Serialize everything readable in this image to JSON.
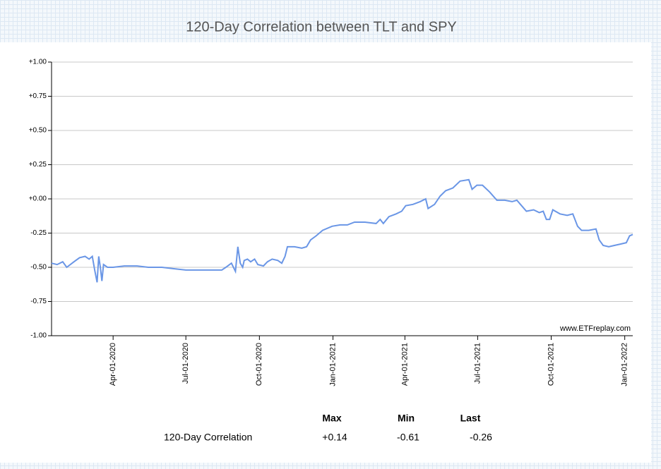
{
  "chart_data": {
    "type": "line",
    "title": "120-Day Correlation between TLT and SPY",
    "annotation": "www.ETFreplay.com",
    "color": "#6a96e6",
    "grid": true,
    "x": [
      "2020-01-15",
      "2020-01-22",
      "2020-01-29",
      "2020-02-03",
      "2020-02-12",
      "2020-02-19",
      "2020-02-26",
      "2020-03-02",
      "2020-03-06",
      "2020-03-09",
      "2020-03-12",
      "2020-03-14",
      "2020-03-16",
      "2020-03-18",
      "2020-03-20",
      "2020-03-25",
      "2020-04-01",
      "2020-04-15",
      "2020-05-01",
      "2020-05-15",
      "2020-06-01",
      "2020-06-15",
      "2020-07-01",
      "2020-07-15",
      "2020-08-01",
      "2020-08-15",
      "2020-08-20",
      "2020-08-27",
      "2020-09-01",
      "2020-09-04",
      "2020-09-07",
      "2020-09-10",
      "2020-09-12",
      "2020-09-16",
      "2020-09-20",
      "2020-09-25",
      "2020-09-29",
      "2020-10-06",
      "2020-10-11",
      "2020-10-17",
      "2020-10-24",
      "2020-10-29",
      "2020-11-02",
      "2020-11-05",
      "2020-11-14",
      "2020-11-23",
      "2020-11-29",
      "2020-12-04",
      "2020-12-11",
      "2020-12-19",
      "2020-12-31",
      "2021-01-10",
      "2021-01-19",
      "2021-01-28",
      "2021-02-10",
      "2021-02-24",
      "2021-03-01",
      "2021-03-05",
      "2021-03-12",
      "2021-03-21",
      "2021-03-28",
      "2021-04-02",
      "2021-04-11",
      "2021-04-20",
      "2021-04-27",
      "2021-04-30",
      "2021-05-08",
      "2021-05-15",
      "2021-05-22",
      "2021-05-31",
      "2021-06-09",
      "2021-06-20",
      "2021-06-24",
      "2021-06-30",
      "2021-07-07",
      "2021-07-16",
      "2021-07-25",
      "2021-08-04",
      "2021-08-13",
      "2021-08-19",
      "2021-08-25",
      "2021-08-31",
      "2021-09-09",
      "2021-09-16",
      "2021-09-21",
      "2021-09-25",
      "2021-09-29",
      "2021-10-03",
      "2021-10-12",
      "2021-10-21",
      "2021-10-28",
      "2021-11-03",
      "2021-11-08",
      "2021-11-17",
      "2021-11-26",
      "2021-11-30",
      "2021-12-05",
      "2021-12-12",
      "2021-12-19",
      "2021-12-27",
      "2022-01-03",
      "2022-01-07",
      "2022-01-11"
    ],
    "values": [
      -0.47,
      -0.48,
      -0.46,
      -0.5,
      -0.46,
      -0.43,
      -0.42,
      -0.44,
      -0.42,
      -0.52,
      -0.61,
      -0.42,
      -0.5,
      -0.6,
      -0.48,
      -0.5,
      -0.5,
      -0.49,
      -0.49,
      -0.5,
      -0.5,
      -0.51,
      -0.52,
      -0.52,
      -0.52,
      -0.52,
      -0.5,
      -0.47,
      -0.53,
      -0.35,
      -0.47,
      -0.5,
      -0.45,
      -0.44,
      -0.46,
      -0.44,
      -0.48,
      -0.49,
      -0.46,
      -0.44,
      -0.45,
      -0.47,
      -0.42,
      -0.35,
      -0.35,
      -0.36,
      -0.35,
      -0.3,
      -0.27,
      -0.23,
      -0.2,
      -0.19,
      -0.19,
      -0.17,
      -0.17,
      -0.18,
      -0.15,
      -0.18,
      -0.13,
      -0.11,
      -0.09,
      -0.05,
      -0.04,
      -0.02,
      0.0,
      -0.07,
      -0.04,
      0.02,
      0.06,
      0.08,
      0.13,
      0.14,
      0.07,
      0.1,
      0.1,
      0.05,
      -0.01,
      -0.01,
      -0.02,
      -0.01,
      -0.05,
      -0.09,
      -0.08,
      -0.1,
      -0.09,
      -0.15,
      -0.15,
      -0.08,
      -0.11,
      -0.12,
      -0.11,
      -0.2,
      -0.23,
      -0.23,
      -0.22,
      -0.3,
      -0.34,
      -0.35,
      -0.34,
      -0.33,
      -0.32,
      -0.27,
      -0.26
    ],
    "xlim": [
      "2020-01-15",
      "2022-01-11"
    ],
    "xticks": [
      {
        "value": "2020-04-01",
        "label": "Apr-01-2020"
      },
      {
        "value": "2020-07-01",
        "label": "Jul-01-2020"
      },
      {
        "value": "2020-10-01",
        "label": "Oct-01-2020"
      },
      {
        "value": "2021-01-01",
        "label": "Jan-01-2021"
      },
      {
        "value": "2021-04-01",
        "label": "Apr-01-2021"
      },
      {
        "value": "2021-07-01",
        "label": "Jul-01-2021"
      },
      {
        "value": "2021-10-01",
        "label": "Oct-01-2021"
      },
      {
        "value": "2022-01-01",
        "label": "Jan-01-2022"
      }
    ],
    "ylim": [
      -1,
      1
    ],
    "yticks": [
      {
        "value": 1,
        "label": "+1.00"
      },
      {
        "value": 0.75,
        "label": "+0.75"
      },
      {
        "value": 0.5,
        "label": "+0.50"
      },
      {
        "value": 0.25,
        "label": "+0.25"
      },
      {
        "value": 0,
        "label": "+0.00"
      },
      {
        "value": -0.25,
        "label": "-0.25"
      },
      {
        "value": -0.5,
        "label": "-0.50"
      },
      {
        "value": -0.75,
        "label": "-0.75"
      },
      {
        "value": -1,
        "label": "-1.00"
      }
    ]
  },
  "stats": {
    "headers": [
      "Max",
      "Min",
      "Last"
    ],
    "rows": [
      {
        "label": "120-Day Correlation",
        "values": [
          "+0.14",
          "-0.61",
          "-0.26"
        ]
      }
    ]
  }
}
